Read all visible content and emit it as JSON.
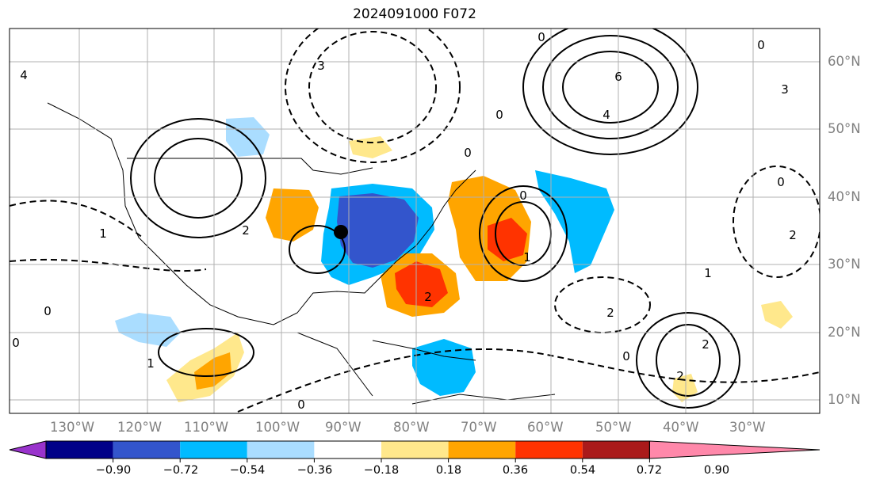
{
  "title": "2024091000 F072",
  "map": {
    "lon_labels": [
      "130°W",
      "120°W",
      "110°W",
      "100°W",
      "90°W",
      "80°W",
      "70°W",
      "60°W",
      "50°W",
      "40°W",
      "30°W"
    ],
    "lat_labels": [
      "60°N",
      "50°N",
      "40°N",
      "30°N",
      "20°N",
      "10°N"
    ],
    "contour_labels": [
      "0",
      "0",
      "0",
      "0",
      "0",
      "0",
      "0",
      "0",
      "0",
      "0",
      "1",
      "1",
      "1",
      "1",
      "2",
      "2",
      "2",
      "2",
      "2",
      "2",
      "3",
      "3",
      "4",
      "4",
      "6"
    ]
  },
  "colorbar": {
    "tick_labels": [
      "−0.90",
      "−0.72",
      "−0.54",
      "−0.36",
      "−0.18",
      "0.18",
      "0.36",
      "0.54",
      "0.72",
      "0.90"
    ],
    "colors": [
      "#9933cc",
      "#000088",
      "#3355cc",
      "#00bbff",
      "#aaddff",
      "#ffffff",
      "#ffe88c",
      "#ffa500",
      "#ff3300",
      "#aa1a1a",
      "#ff88aa"
    ]
  }
}
